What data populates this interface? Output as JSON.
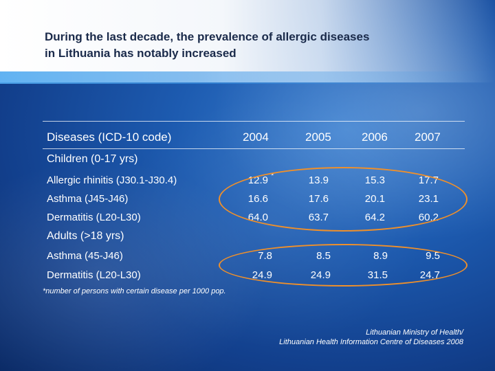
{
  "title": {
    "line1": "During the last decade, the prevalence of allergic diseases",
    "line2": "in Lithuania has notably increased"
  },
  "table": {
    "columns": [
      "Diseases (ICD-10 code)",
      "2004",
      "2005",
      "2006",
      "2007"
    ],
    "sections": [
      {
        "label": "Children (0-17 yrs)",
        "rows": [
          {
            "disease": "Allergic rhinitis (J30.1-J30.4)",
            "values": [
              "12.9",
              "13.9",
              "15.3",
              "17.7"
            ],
            "marker": "*"
          },
          {
            "disease": "Asthma (J45-J46)",
            "values": [
              "16.6",
              "17.6",
              "20.1",
              "23.1"
            ]
          },
          {
            "disease": "Dermatitis (L20-L30)",
            "values": [
              "64.0",
              "63.7",
              "64.2",
              "60.2"
            ]
          }
        ]
      },
      {
        "label": "Adults (>18 yrs)",
        "rows": [
          {
            "disease": "Asthma (45-J46)",
            "values": [
              "7.8",
              "8.5",
              "8.9",
              "9.5"
            ]
          },
          {
            "disease": "Dermatitis (L20-L30)",
            "values": [
              "24.9",
              "24.9",
              "31.5",
              "24.7"
            ]
          }
        ]
      }
    ]
  },
  "footnote": "*number of persons with certain disease per 1000 pop.",
  "source": {
    "line1": "Lithuanian Ministry of Health/",
    "line2": "Lithuanian Health Information Centre of Diseases 2008"
  },
  "colors": {
    "highlight": "#f0902a"
  }
}
